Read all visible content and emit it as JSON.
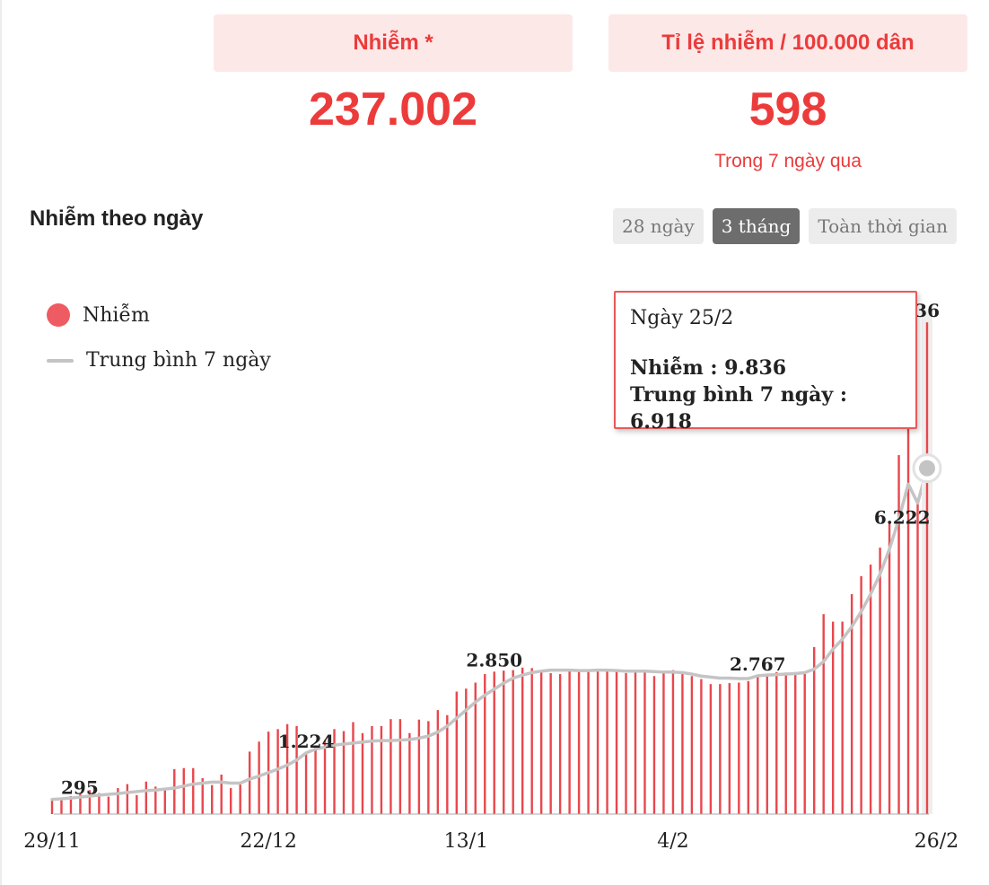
{
  "stats": [
    {
      "header": "Nhiễm *",
      "value": "237.002",
      "note": ""
    },
    {
      "header": "Tỉ lệ nhiễm / 100.000 dân",
      "value": "598",
      "note": "Trong 7 ngày qua"
    }
  ],
  "section_title": "Nhiễm theo ngày",
  "tabs": [
    {
      "label": "28 ngày",
      "active": false
    },
    {
      "label": "3 tháng",
      "active": true
    },
    {
      "label": "Toàn thời gian",
      "active": false
    }
  ],
  "legend": {
    "infections": "Nhiễm",
    "average": "Trung bình 7 ngày"
  },
  "tooltip": {
    "title": "Ngày 25/2",
    "infections_row": "Nhiễm : 9.836",
    "average_row": "Trung bình 7 ngày : 6.918"
  },
  "colors": {
    "bar": "#e8474c",
    "average_line": "#c4c4c4",
    "legend_dot": "#ef5b62",
    "accent": "#ec3b3b"
  },
  "chart_data": {
    "type": "bar",
    "x_start": "29/11",
    "x_end": "26/2",
    "x_ticks": [
      "29/11",
      "22/12",
      "13/1",
      "4/2",
      "26/2"
    ],
    "ylim": [
      0,
      10000
    ],
    "grid": false,
    "legend_position": "top-left",
    "series": [
      {
        "name": "Nhiễm",
        "type": "bar",
        "values": [
          295,
          330,
          360,
          400,
          480,
          420,
          350,
          520,
          600,
          380,
          650,
          550,
          510,
          900,
          920,
          920,
          720,
          580,
          790,
          520,
          600,
          1250,
          1450,
          1650,
          1700,
          1800,
          1760,
          1224,
          1350,
          1480,
          1700,
          1660,
          1840,
          1620,
          1760,
          1760,
          1900,
          1900,
          1620,
          1890,
          1860,
          2080,
          1980,
          2450,
          2510,
          2630,
          2800,
          2850,
          2870,
          2880,
          2930,
          2920,
          2850,
          2820,
          2800,
          2870,
          2850,
          2900,
          2880,
          2870,
          2900,
          2820,
          2870,
          2830,
          2760,
          2830,
          2880,
          2800,
          2760,
          2700,
          2600,
          2600,
          2620,
          2630,
          2660,
          2767,
          2810,
          2840,
          2830,
          2840,
          2850,
          3340,
          4000,
          3850,
          3850,
          4400,
          4760,
          4990,
          5330,
          5830,
          7180,
          8000,
          6222,
          9836
        ],
        "labels": [
          {
            "index": 0,
            "text": "295"
          },
          {
            "index": 27,
            "text": "1.224"
          },
          {
            "index": 47,
            "text": "2.850"
          },
          {
            "index": 75,
            "text": "2.767"
          },
          {
            "index": 93,
            "text": "9.836"
          }
        ]
      },
      {
        "name": "Trung bình 7 ngày",
        "type": "line",
        "values": [
          295,
          305,
          320,
          340,
          360,
          380,
          395,
          410,
          430,
          450,
          470,
          480,
          500,
          520,
          560,
          600,
          620,
          640,
          640,
          620,
          620,
          700,
          760,
          830,
          900,
          980,
          1080,
          1224,
          1300,
          1340,
          1380,
          1400,
          1420,
          1440,
          1460,
          1470,
          1470,
          1480,
          1490,
          1520,
          1560,
          1640,
          1760,
          1920,
          2080,
          2240,
          2380,
          2500,
          2620,
          2720,
          2780,
          2830,
          2860,
          2880,
          2880,
          2880,
          2870,
          2870,
          2880,
          2880,
          2870,
          2860,
          2860,
          2860,
          2850,
          2840,
          2840,
          2830,
          2800,
          2760,
          2740,
          2720,
          2720,
          2710,
          2710,
          2767,
          2780,
          2790,
          2800,
          2810,
          2830,
          2900,
          3050,
          3300,
          3500,
          3750,
          4050,
          4400,
          4800,
          5300,
          5900,
          6600,
          6222,
          6918
        ],
        "labels": [
          {
            "index": 92,
            "text": "6.222"
          }
        ]
      }
    ]
  }
}
